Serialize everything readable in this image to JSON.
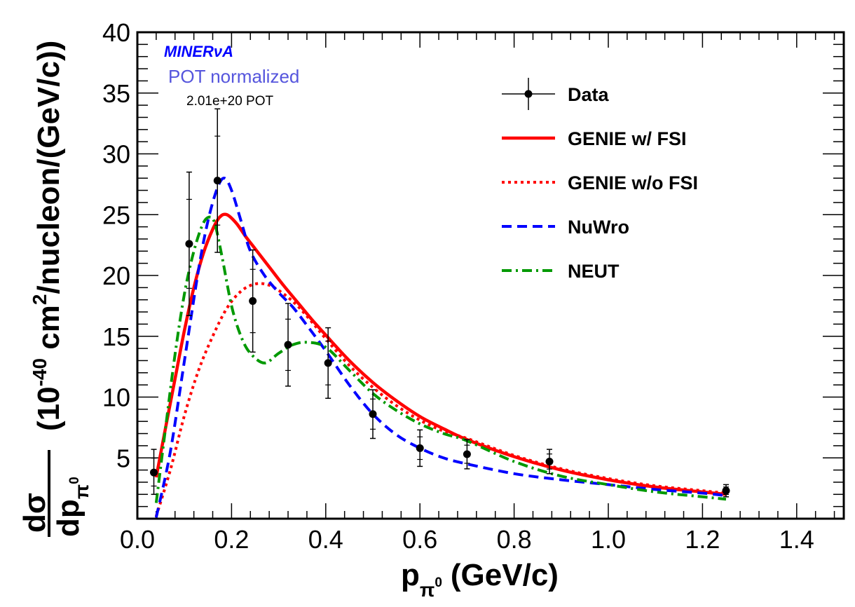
{
  "chart_data": {
    "type": "line",
    "title": "",
    "xlabel": "p",
    "xlabel_sub": "π",
    "xlabel_sub_sup": "0",
    "xlabel_unit": "(GeV/c)",
    "ylabel_numerator": "dσ",
    "ylabel_denominator": "dp",
    "ylabel_denominator_sub": "π",
    "ylabel_denominator_sub_sup": "0",
    "ylabel_units_part1": "(10",
    "ylabel_units_exp1": "-40",
    "ylabel_units_part2": " cm",
    "ylabel_units_exp2": "2",
    "ylabel_units_part3": "/nucleon/(GeV/c))",
    "xlim": [
      0.0,
      1.5
    ],
    "ylim": [
      0,
      40
    ],
    "x_ticks": [
      0.0,
      0.2,
      0.4,
      0.6,
      0.8,
      1.0,
      1.2,
      1.4
    ],
    "x_tick_labels": [
      "0.0",
      "0.2",
      "0.4",
      "0.6",
      "0.8",
      "1.0",
      "1.2",
      "1.4"
    ],
    "y_ticks": [
      5,
      10,
      15,
      20,
      25,
      30,
      35,
      40
    ],
    "y_tick_labels": [
      "5",
      "10",
      "15",
      "20",
      "25",
      "30",
      "35",
      "40"
    ],
    "grid": false,
    "legend_position": "top-right",
    "annotations": {
      "experiment": "MINERνA",
      "normalization": "POT normalized",
      "pot": "2.01e+20 POT"
    },
    "colors": {
      "data": "#000000",
      "genie_fsi": "#ff0000",
      "genie_nofsi": "#ff0000",
      "nuwro": "#0000ff",
      "neut": "#009900",
      "experiment_label": "#0000ff",
      "normalization_label": "#5555dd"
    },
    "data_points": {
      "name": "Data",
      "x": [
        0.035,
        0.11,
        0.17,
        0.245,
        0.32,
        0.405,
        0.5,
        0.6,
        0.7,
        0.875,
        1.25
      ],
      "y": [
        3.8,
        22.6,
        27.8,
        17.9,
        14.3,
        12.8,
        8.6,
        5.8,
        5.3,
        4.7,
        2.3
      ],
      "err_low": [
        1.8,
        5.9,
        5.9,
        4.2,
        3.4,
        2.9,
        2.0,
        1.5,
        1.2,
        1.0,
        0.5
      ],
      "err_high": [
        1.9,
        5.9,
        5.9,
        4.2,
        3.4,
        2.9,
        2.0,
        1.5,
        1.2,
        1.0,
        0.5
      ],
      "xerr": [
        0.035,
        0.035,
        0.03,
        0.04,
        0.04,
        0.045,
        0.05,
        0.05,
        0.05,
        0.125,
        0.25
      ]
    },
    "series": [
      {
        "name": "GENIE w/ FSI",
        "style": "solid",
        "x": [
          0.04,
          0.06,
          0.08,
          0.1,
          0.12,
          0.14,
          0.16,
          0.175,
          0.19,
          0.21,
          0.23,
          0.25,
          0.28,
          0.31,
          0.34,
          0.37,
          0.4,
          0.45,
          0.5,
          0.55,
          0.6,
          0.65,
          0.7,
          0.8,
          0.9,
          1.0,
          1.1,
          1.2,
          1.25
        ],
        "y": [
          3.4,
          7.5,
          11.5,
          15.5,
          19.0,
          21.8,
          23.8,
          24.8,
          25.0,
          24.3,
          23.2,
          22.2,
          20.7,
          19.2,
          17.8,
          16.4,
          15.1,
          13.0,
          11.2,
          9.7,
          8.4,
          7.4,
          6.5,
          5.1,
          4.0,
          3.2,
          2.6,
          2.2,
          2.0
        ]
      },
      {
        "name": "GENIE w/o FSI",
        "style": "dotted",
        "x": [
          0.04,
          0.07,
          0.1,
          0.13,
          0.16,
          0.19,
          0.22,
          0.25,
          0.28,
          0.31,
          0.34,
          0.37,
          0.4,
          0.45,
          0.5,
          0.55,
          0.6,
          0.65,
          0.7,
          0.8,
          0.9,
          1.0,
          1.1,
          1.2,
          1.25
        ],
        "y": [
          0.2,
          4.0,
          8.5,
          12.2,
          15.0,
          17.3,
          18.7,
          19.3,
          19.2,
          18.5,
          17.5,
          16.2,
          14.8,
          12.6,
          10.8,
          9.3,
          8.1,
          7.2,
          6.6,
          5.2,
          4.1,
          3.3,
          2.7,
          2.3,
          2.1
        ]
      },
      {
        "name": "NuWro",
        "style": "dashed",
        "x": [
          0.04,
          0.07,
          0.1,
          0.13,
          0.15,
          0.17,
          0.185,
          0.2,
          0.22,
          0.24,
          0.27,
          0.3,
          0.33,
          0.36,
          0.4,
          0.45,
          0.5,
          0.55,
          0.6,
          0.65,
          0.7,
          0.8,
          0.9,
          1.0,
          1.1,
          1.2,
          1.25
        ],
        "y": [
          0.1,
          5.5,
          13.0,
          20.5,
          24.5,
          27.2,
          28.0,
          27.0,
          24.5,
          22.0,
          20.0,
          18.6,
          17.4,
          15.9,
          13.8,
          11.0,
          8.6,
          6.9,
          5.8,
          5.0,
          4.5,
          3.7,
          3.2,
          2.8,
          2.4,
          2.1,
          1.9
        ]
      },
      {
        "name": "NEUT",
        "style": "dashdot",
        "x": [
          0.04,
          0.06,
          0.08,
          0.1,
          0.12,
          0.14,
          0.155,
          0.165,
          0.18,
          0.2,
          0.22,
          0.24,
          0.27,
          0.3,
          0.33,
          0.36,
          0.4,
          0.45,
          0.5,
          0.55,
          0.6,
          0.65,
          0.7,
          0.8,
          0.9,
          1.0,
          1.1,
          1.2,
          1.25
        ],
        "y": [
          1.3,
          7.5,
          13.5,
          18.5,
          22.0,
          24.3,
          24.8,
          24.2,
          21.5,
          17.5,
          15.0,
          13.6,
          12.8,
          13.6,
          14.3,
          14.5,
          14.1,
          12.2,
          10.3,
          8.9,
          7.8,
          7.0,
          6.4,
          4.7,
          3.5,
          2.8,
          2.2,
          1.8,
          1.6
        ]
      }
    ],
    "legend": [
      "Data",
      "GENIE w/ FSI",
      "GENIE w/o FSI",
      "NuWro",
      "NEUT"
    ]
  }
}
